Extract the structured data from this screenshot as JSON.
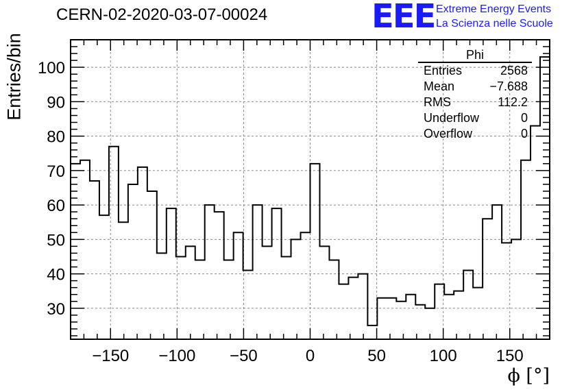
{
  "header": {
    "run_title": "CERN-02-2020-03-07-00024",
    "logo_text": "EEE",
    "logo_line1": "Extreme Energy Events",
    "logo_line2": "La Scienza nelle Scuole"
  },
  "stats_box": {
    "title": "Phi",
    "rows": [
      {
        "label": "Entries",
        "value": "2568"
      },
      {
        "label": "Mean",
        "value": "−7.688"
      },
      {
        "label": "RMS",
        "value": "112.2"
      },
      {
        "label": "Underflow",
        "value": "0"
      },
      {
        "label": "Overflow",
        "value": "0"
      }
    ]
  },
  "chart_data": {
    "type": "bar",
    "histogram": true,
    "title": "CERN-02-2020-03-07-00024",
    "xlabel": "ϕ [°]",
    "ylabel": "Entries/bin",
    "xlim": [
      -180,
      180
    ],
    "ylim": [
      21,
      108
    ],
    "bin_width": 7.2,
    "x_ticks": [
      -150,
      -100,
      -50,
      0,
      50,
      100,
      150
    ],
    "x_tick_labels": [
      "−150",
      "−100",
      "−50",
      "0",
      "50",
      "100",
      "150"
    ],
    "y_ticks": [
      30,
      40,
      50,
      60,
      70,
      80,
      90,
      100
    ],
    "grid": true,
    "bin_edges_start": -180,
    "values": [
      72,
      73,
      67,
      57,
      77,
      55,
      66,
      71,
      64,
      46,
      59,
      45,
      48,
      44,
      60,
      58,
      44,
      52,
      41,
      60,
      48,
      59,
      45,
      50,
      52,
      72,
      48,
      44,
      37,
      39,
      40,
      25,
      33,
      33,
      32,
      34,
      31,
      30,
      37,
      34,
      35,
      41,
      36,
      56,
      60,
      49,
      50,
      73,
      83,
      103
    ],
    "line_color": "#000000"
  }
}
